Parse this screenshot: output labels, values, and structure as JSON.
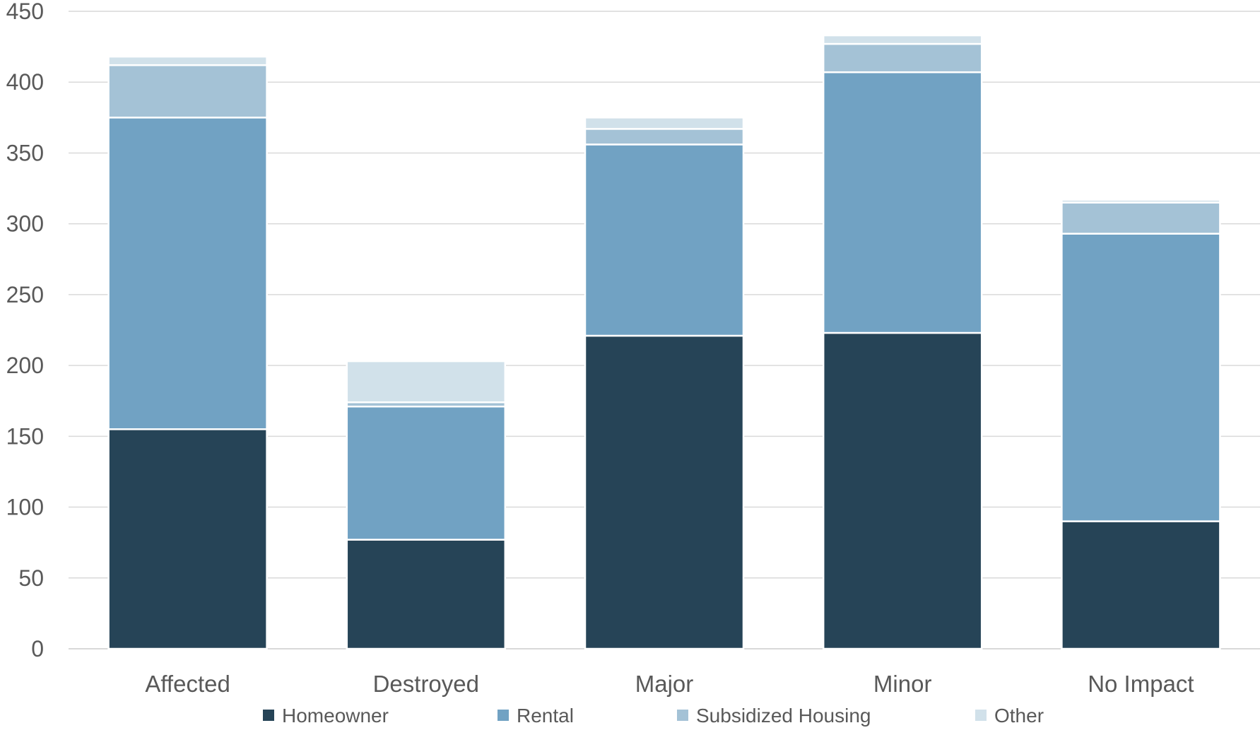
{
  "chart_data": {
    "type": "bar",
    "stacked": true,
    "categories": [
      "Affected",
      "Destroyed",
      "Major",
      "Minor",
      "No Impact"
    ],
    "series": [
      {
        "name": "Homeowner",
        "color": "#264457",
        "values": [
          155,
          77,
          221,
          223,
          90
        ]
      },
      {
        "name": "Rental",
        "color": "#71a2c3",
        "values": [
          220,
          94,
          135,
          184,
          203
        ]
      },
      {
        "name": "Subsidized Housing",
        "color": "#a4c2d6",
        "values": [
          37,
          3,
          11,
          20,
          22
        ]
      },
      {
        "name": "Other",
        "color": "#d1e1ea",
        "values": [
          6,
          29,
          8,
          6,
          2
        ]
      }
    ],
    "title": "",
    "xlabel": "",
    "ylabel": "",
    "ylim": [
      0,
      450
    ],
    "yticks": [
      0,
      50,
      100,
      150,
      200,
      250,
      300,
      350,
      400,
      450
    ],
    "grid": true,
    "legend": "bottom"
  }
}
